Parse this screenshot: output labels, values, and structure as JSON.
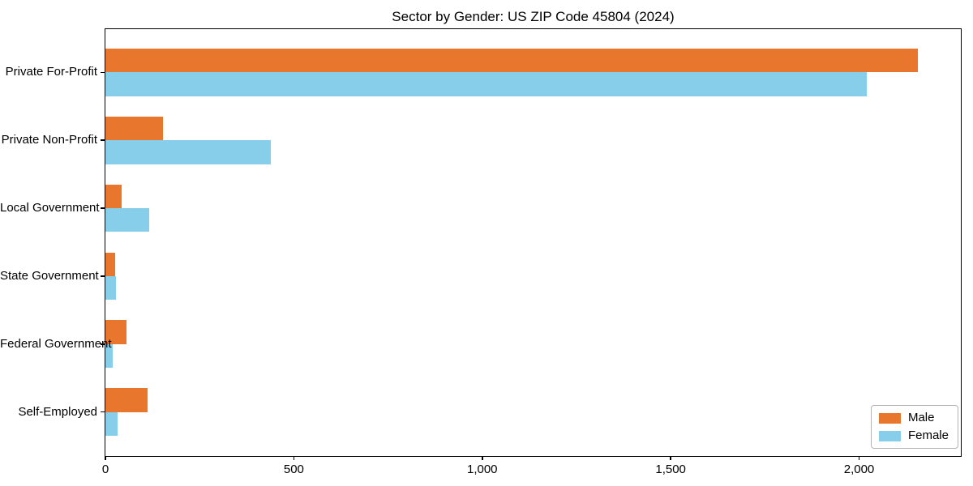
{
  "chart_data": {
    "type": "bar",
    "orientation": "horizontal",
    "title": "Sector by Gender: US ZIP Code 45804 (2024)",
    "categories": [
      "Private For-Profit",
      "Private Non-Profit",
      "Local Government",
      "State Government",
      "Federal Government",
      "Self-Employed"
    ],
    "series": [
      {
        "name": "Male",
        "color": "#e8762d",
        "values": [
          2155,
          152,
          43,
          25,
          55,
          111
        ]
      },
      {
        "name": "Female",
        "color": "#87ceeb",
        "values": [
          2020,
          440,
          116,
          29,
          20,
          32
        ]
      }
    ],
    "xlabel": "",
    "ylabel": "",
    "xlim": [
      0,
      2270
    ],
    "xticks": [
      0,
      500,
      1000,
      1500,
      2000
    ],
    "xtick_labels": [
      "0",
      "500",
      "1,000",
      "1,500",
      "2,000"
    ],
    "grid": false,
    "legend": {
      "position": "lower right",
      "entries": [
        "Male",
        "Female"
      ]
    }
  }
}
